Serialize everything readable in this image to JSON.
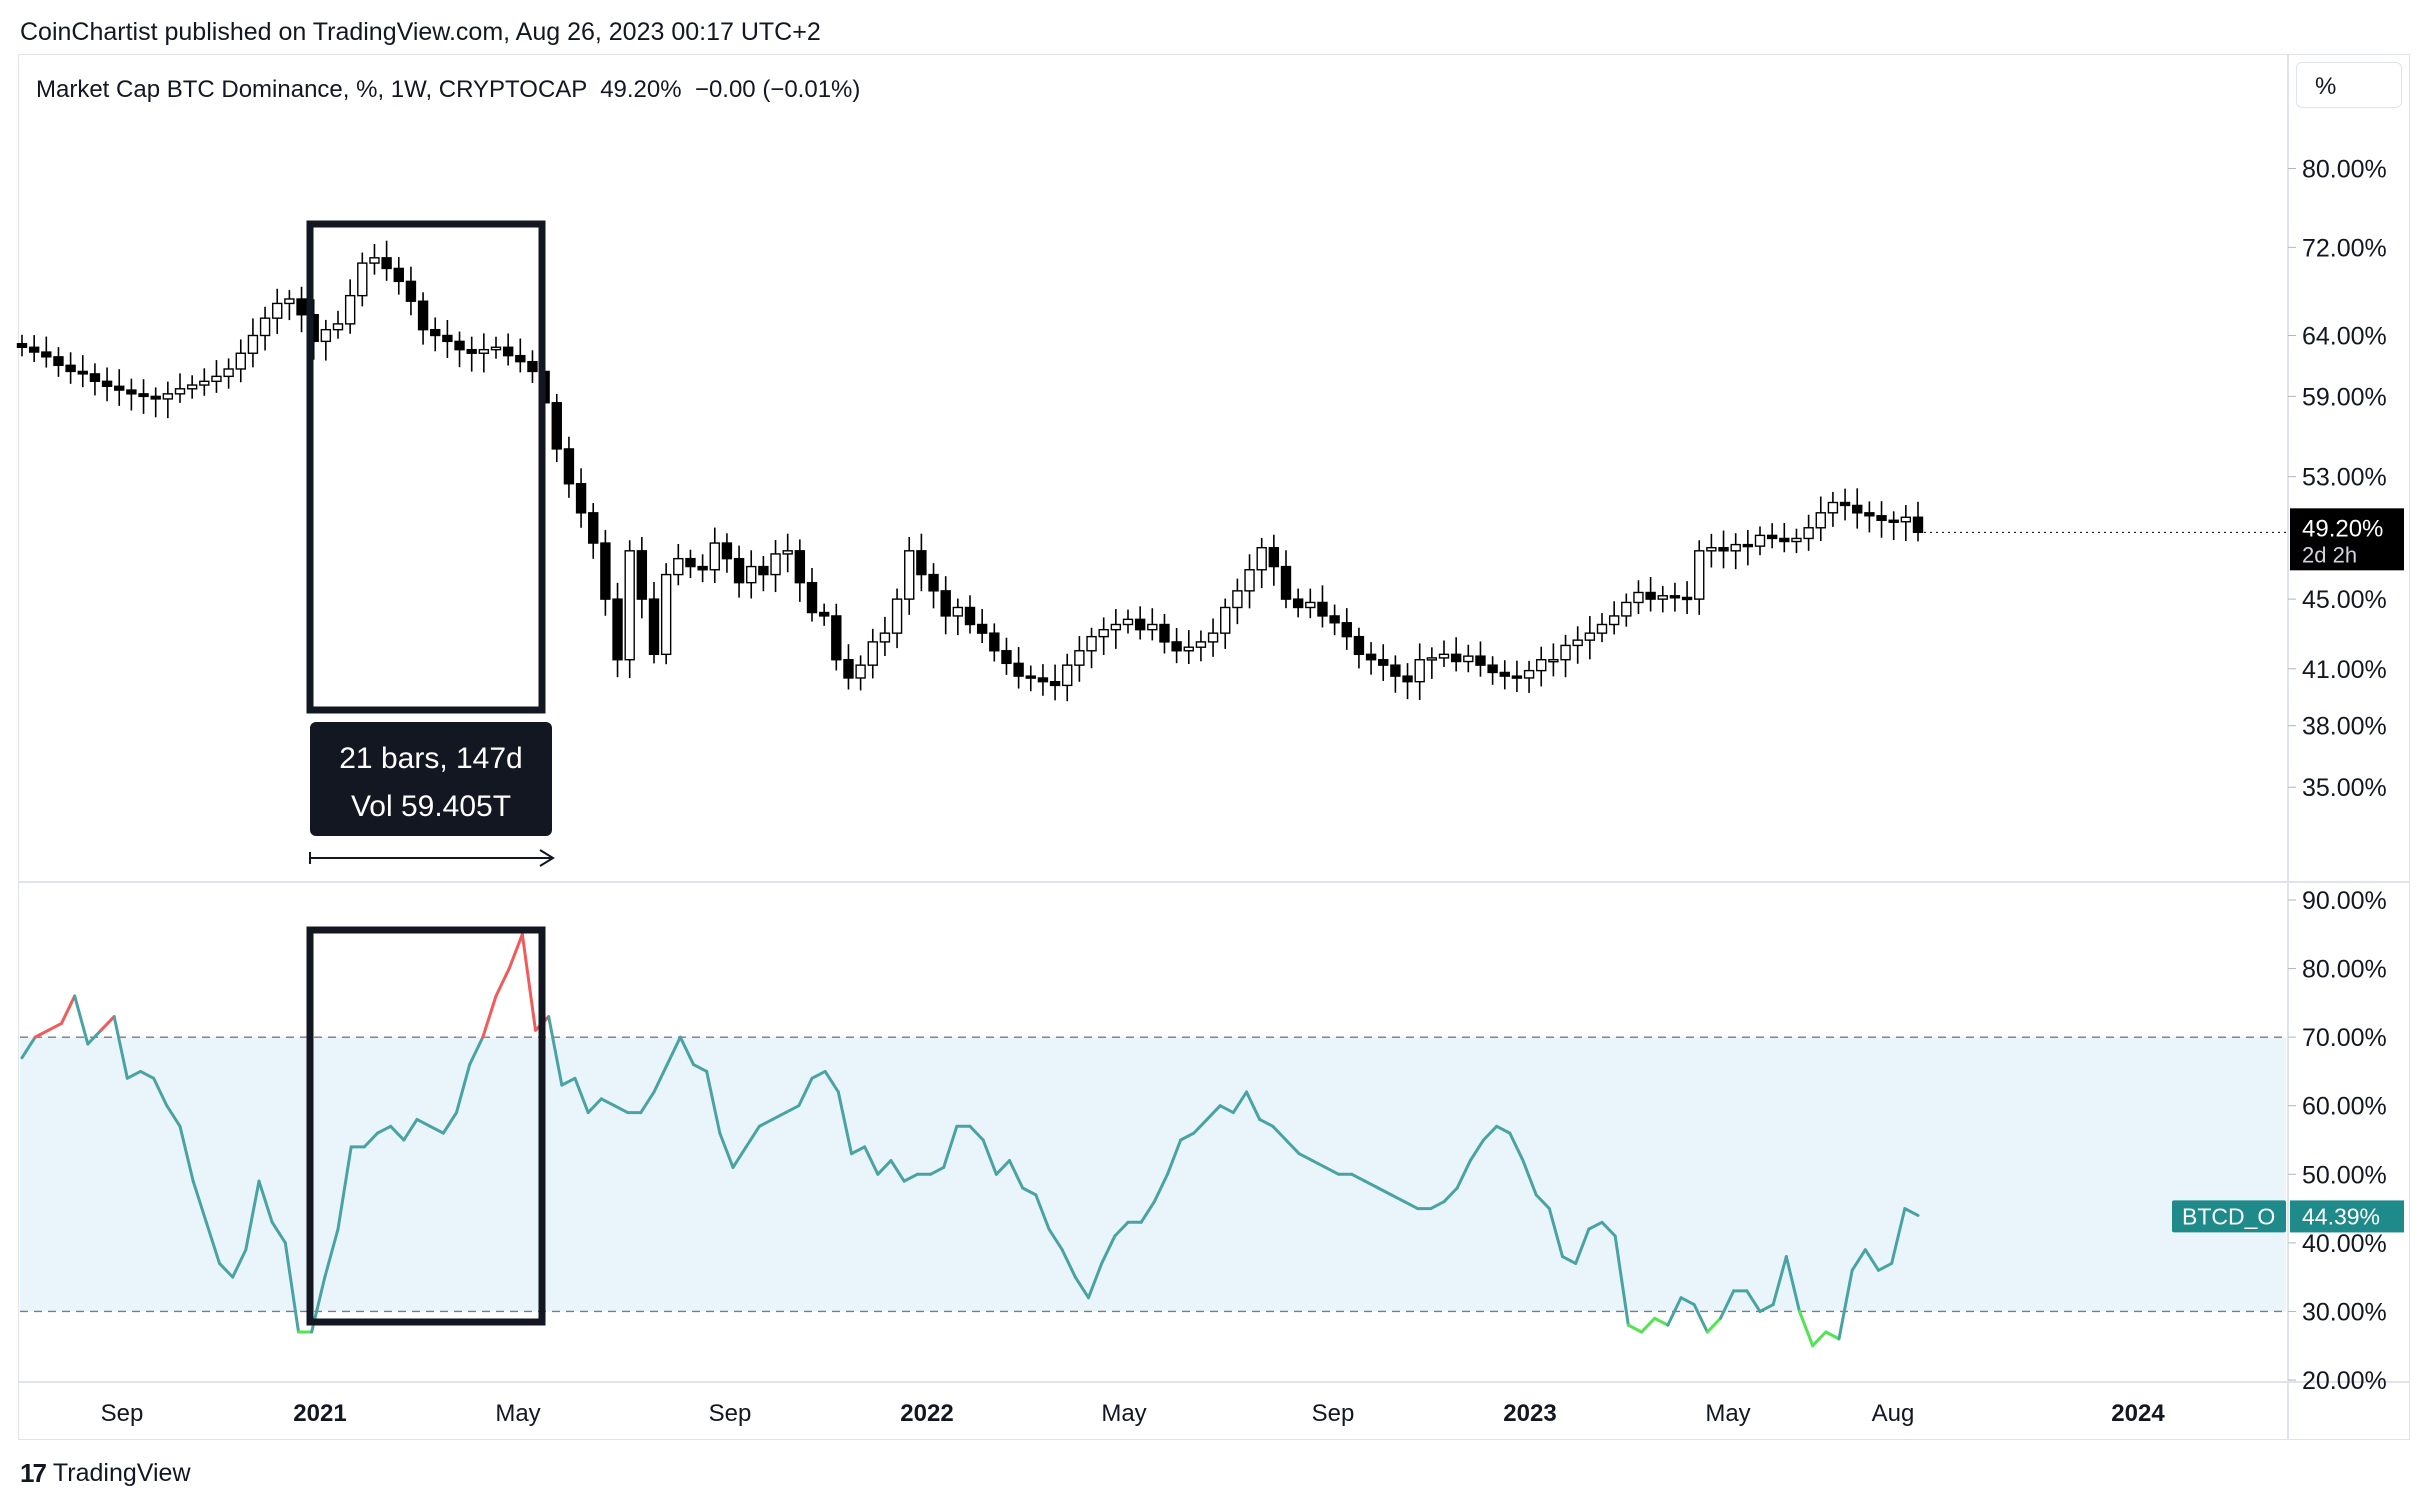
{
  "header": {
    "published": "CoinChartist published on TradingView.com, Aug 26, 2023 00:17 UTC+2",
    "legend": "Market Cap BTC Dominance, %, 1W, CRYPTOCAP  49.20%  −0.00 (−0.01%)",
    "scale_button": "%"
  },
  "footer": {
    "logo_mark": "17",
    "logo_text": "TradingView"
  },
  "colors": {
    "up_candle": "#ffffff",
    "down_candle": "#000000",
    "wick": "#000000",
    "rsi_line": "#4aa3a3",
    "rsi_overbought": "#f15b5b",
    "rsi_oversold": "#52e552",
    "rsi_band": "#eaf4fb",
    "price_tag": "#000000",
    "rsi_tag": "#1f8a8a"
  },
  "chart_data": [
    {
      "type": "candlestick",
      "title": "Market Cap BTC Dominance, %, 1W, CRYPTOCAP",
      "y_axis_ticks": [
        "80.00%",
        "72.00%",
        "64.00%",
        "59.00%",
        "53.00%",
        "45.00%",
        "41.00%",
        "38.00%",
        "35.00%"
      ],
      "y_axis_values": [
        80,
        72,
        64,
        59,
        53,
        45,
        41,
        38,
        35
      ],
      "x_axis_ticks": [
        "Sep",
        "2021",
        "May",
        "Sep",
        "2022",
        "May",
        "Sep",
        "2023",
        "May",
        "Aug",
        "2024"
      ],
      "last_price_label": "49.20%",
      "countdown_label": "2d 2h",
      "measure_box": {
        "bars": "21 bars, 147d",
        "volume": "Vol 59.405T"
      },
      "weekly_close": [
        63.0,
        62.6,
        62.2,
        61.5,
        61.0,
        60.8,
        60.2,
        59.8,
        59.5,
        59.2,
        59.0,
        58.8,
        59.2,
        59.6,
        59.9,
        60.2,
        60.6,
        61.2,
        62.5,
        64.0,
        65.5,
        66.8,
        67.2,
        65.8,
        63.5,
        64.5,
        65.0,
        67.5,
        70.5,
        71.0,
        70.0,
        68.8,
        67.0,
        64.5,
        64.0,
        63.5,
        62.8,
        62.5,
        62.8,
        63.0,
        62.3,
        61.8,
        61.0,
        58.5,
        55.0,
        52.5,
        50.5,
        48.5,
        45.0,
        41.5,
        48.0,
        45.0,
        41.8,
        46.5,
        47.5,
        47.0,
        46.8,
        48.5,
        47.5,
        46.0,
        47.0,
        46.5,
        47.8,
        48.0,
        46.0,
        44.2,
        44.0,
        41.5,
        40.5,
        41.2,
        42.5,
        43.0,
        45.0,
        48.0,
        46.5,
        45.5,
        44.0,
        44.5,
        43.5,
        43.0,
        42.0,
        41.3,
        40.6,
        40.5,
        40.3,
        40.1,
        41.2,
        42.0,
        42.8,
        43.2,
        43.5,
        43.8,
        43.2,
        43.5,
        42.5,
        42.0,
        42.2,
        42.5,
        43.0,
        44.5,
        45.5,
        46.8,
        48.2,
        47.0,
        45.0,
        44.5,
        44.8,
        44.0,
        43.6,
        42.8,
        41.8,
        41.5,
        41.2,
        40.6,
        40.3,
        41.5,
        41.6,
        41.8,
        41.4,
        41.7,
        41.2,
        40.8,
        40.6,
        40.5,
        40.9,
        41.5,
        41.5,
        42.3,
        42.6,
        43.0,
        43.5,
        44.0,
        44.8,
        45.4,
        45.0,
        45.2,
        45.1,
        45.0,
        48.0,
        48.2,
        48.0,
        48.4,
        48.3,
        49.0,
        48.8,
        48.6,
        48.8,
        49.5,
        50.5,
        51.2,
        51.0,
        50.5,
        50.3,
        50.0,
        49.9,
        50.2,
        49.2
      ]
    },
    {
      "type": "line",
      "title": "",
      "series_name": "BTCD_O",
      "y_axis_ticks": [
        "90.00%",
        "80.00%",
        "70.00%",
        "60.00%",
        "50.00%",
        "40.00%",
        "30.00%",
        "20.00%"
      ],
      "y_axis_values": [
        90,
        80,
        70,
        60,
        50,
        40,
        30,
        20
      ],
      "overbought_level": 70,
      "oversold_level": 30,
      "last_value_label": "44.39%",
      "values": [
        67,
        70,
        71,
        72,
        76,
        69,
        71,
        73,
        64,
        65,
        64,
        60,
        57,
        49,
        43,
        37,
        35,
        39,
        49,
        43,
        40,
        27,
        27,
        35,
        42,
        54,
        54,
        56,
        57,
        55,
        58,
        57,
        56,
        59,
        66,
        70,
        76,
        80,
        85,
        71,
        73,
        63,
        64,
        59,
        61,
        60,
        59,
        59,
        62,
        66,
        70,
        66,
        65,
        56,
        51,
        54,
        57,
        58,
        59,
        60,
        64,
        65,
        62,
        53,
        54,
        50,
        52,
        49,
        50,
        50,
        51,
        57,
        57,
        55,
        50,
        52,
        48,
        47,
        42,
        39,
        35,
        32,
        37,
        41,
        43,
        43,
        46,
        50,
        55,
        56,
        58,
        60,
        59,
        62,
        58,
        57,
        55,
        53,
        52,
        51,
        50,
        50,
        49,
        48,
        47,
        46,
        45,
        45,
        46,
        48,
        52,
        55,
        57,
        56,
        52,
        47,
        45,
        38,
        37,
        42,
        43,
        41,
        28,
        27,
        29,
        28,
        32,
        31,
        27,
        29,
        33,
        33,
        30,
        31,
        38,
        30,
        25,
        27,
        26,
        36,
        39,
        36,
        37,
        45,
        44
      ]
    }
  ]
}
